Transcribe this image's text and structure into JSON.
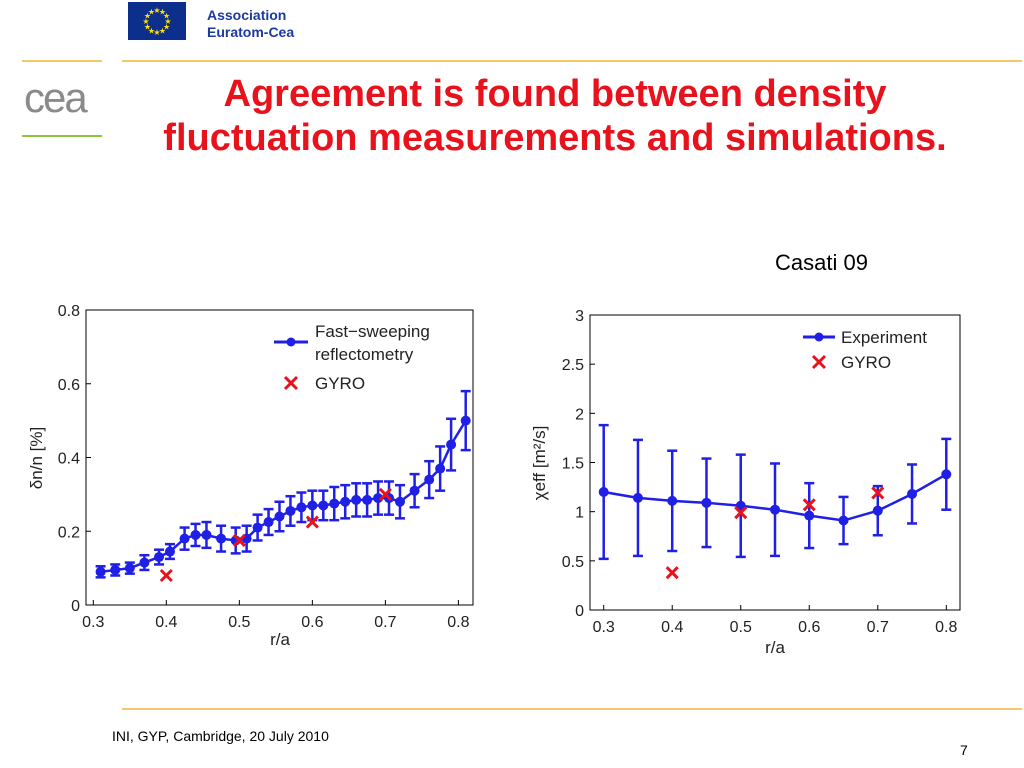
{
  "header": {
    "association_line1": "Association",
    "association_line2": "Euratom-Cea",
    "logo_text": "cea"
  },
  "title": "Agreement is found between density fluctuation measurements and simulations.",
  "citation": "Casati 09",
  "footer": {
    "text": "INI, GYP, Cambridge, 20 July 2010",
    "page_number": "7"
  },
  "colors": {
    "title": "#e8121c",
    "series_blue": "#1f1fe6",
    "gyro_red": "#e8121c",
    "eu_blue": "#0b2f8a",
    "eu_star": "#ffdd00",
    "rule_gold": "#f2c96a",
    "rule_green": "#8cc63f"
  },
  "chart_data": [
    {
      "type": "line",
      "xlabel": "r/a",
      "ylabel": "δn/n [%]",
      "xlim": [
        0.29,
        0.82
      ],
      "ylim": [
        0,
        0.8
      ],
      "xticks": [
        "0.3",
        "0.4",
        "0.5",
        "0.6",
        "0.7",
        "0.8"
      ],
      "yticks": [
        "0",
        "0.2",
        "0.4",
        "0.6",
        "0.8"
      ],
      "grid": false,
      "legend_position": "top-right",
      "series": [
        {
          "name": "Fast−sweeping reflectometry",
          "legend_lines": [
            "Fast−sweeping",
            "reflectometry"
          ],
          "marker": "circle",
          "errorbars": true,
          "x": [
            0.31,
            0.33,
            0.35,
            0.37,
            0.39,
            0.405,
            0.425,
            0.44,
            0.455,
            0.475,
            0.495,
            0.51,
            0.525,
            0.54,
            0.555,
            0.57,
            0.585,
            0.6,
            0.615,
            0.63,
            0.645,
            0.66,
            0.675,
            0.69,
            0.705,
            0.72,
            0.74,
            0.76,
            0.775,
            0.79,
            0.81
          ],
          "y": [
            0.09,
            0.095,
            0.1,
            0.115,
            0.13,
            0.145,
            0.18,
            0.19,
            0.19,
            0.18,
            0.175,
            0.18,
            0.21,
            0.225,
            0.24,
            0.255,
            0.265,
            0.27,
            0.27,
            0.275,
            0.28,
            0.285,
            0.285,
            0.29,
            0.29,
            0.28,
            0.31,
            0.34,
            0.37,
            0.435,
            0.5
          ],
          "err": [
            0.015,
            0.015,
            0.015,
            0.02,
            0.02,
            0.02,
            0.03,
            0.03,
            0.035,
            0.035,
            0.035,
            0.035,
            0.035,
            0.035,
            0.04,
            0.04,
            0.04,
            0.04,
            0.04,
            0.045,
            0.045,
            0.045,
            0.045,
            0.045,
            0.045,
            0.045,
            0.045,
            0.05,
            0.06,
            0.07,
            0.08
          ]
        },
        {
          "name": "GYRO",
          "marker": "x",
          "x": [
            0.4,
            0.5,
            0.6,
            0.7
          ],
          "y": [
            0.08,
            0.175,
            0.225,
            0.3
          ]
        }
      ]
    },
    {
      "type": "line",
      "xlabel": "r/a",
      "ylabel": "χeff [m²/s]",
      "xlim": [
        0.28,
        0.82
      ],
      "ylim": [
        0,
        3
      ],
      "xticks": [
        "0.3",
        "0.4",
        "0.5",
        "0.6",
        "0.7",
        "0.8"
      ],
      "yticks": [
        "0",
        "0.5",
        "1",
        "1.5",
        "2",
        "2.5",
        "3"
      ],
      "grid": false,
      "legend_position": "top-right",
      "series": [
        {
          "name": "Experiment",
          "marker": "circle",
          "errorbars": true,
          "x": [
            0.3,
            0.35,
            0.4,
            0.45,
            0.5,
            0.55,
            0.6,
            0.65,
            0.7,
            0.75,
            0.8
          ],
          "y": [
            1.2,
            1.14,
            1.11,
            1.09,
            1.06,
            1.02,
            0.96,
            0.91,
            1.01,
            1.18,
            1.38
          ],
          "err": [
            0.68,
            0.59,
            0.51,
            0.45,
            0.52,
            0.47,
            0.33,
            0.24,
            0.25,
            0.3,
            0.36
          ]
        },
        {
          "name": "GYRO",
          "marker": "x",
          "x": [
            0.4,
            0.5,
            0.6,
            0.7
          ],
          "y": [
            0.38,
            0.99,
            1.07,
            1.19
          ]
        }
      ]
    }
  ]
}
